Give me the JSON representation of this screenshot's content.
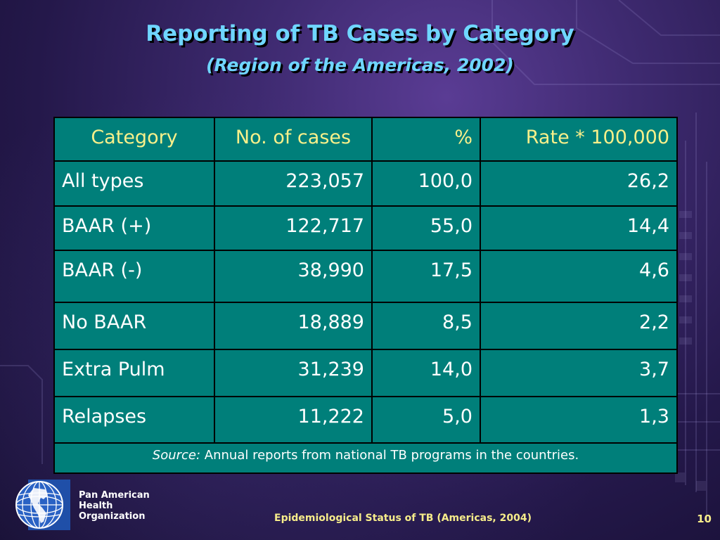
{
  "slide": {
    "title": "Reporting of TB Cases by Category",
    "subtitle": "(Region of the Americas, 2002)"
  },
  "table": {
    "headers": [
      "Category",
      "No. of cases",
      "%",
      "Rate * 100,000"
    ],
    "rows": [
      [
        "All types",
        "223,057",
        "100,0",
        "26,2"
      ],
      [
        "BAAR (+)",
        "122,717",
        "55,0",
        "14,4"
      ],
      [
        "BAAR (-)",
        "38,990",
        "17,5",
        "4,6"
      ],
      [
        "No BAAR",
        "18,889",
        "8,5",
        "2,2"
      ],
      [
        "Extra Pulm",
        "31,239",
        "14,0",
        "3,7"
      ],
      [
        "Relapses",
        "11,222",
        "5,0",
        "1,3"
      ]
    ],
    "source_label": "Source:",
    "source_text": " Annual reports from national TB programs in the countries."
  },
  "footer": {
    "org_lines": [
      "Pan American",
      "Health",
      "Organization"
    ],
    "caption": "Epidemiological Status of TB (Americas, 2004)",
    "page_number": "10"
  },
  "colors": {
    "title": "#6fd6ff",
    "table_background": "#007f7a",
    "header_text": "#f8f08a",
    "footer_text": "#f6ec8a"
  }
}
